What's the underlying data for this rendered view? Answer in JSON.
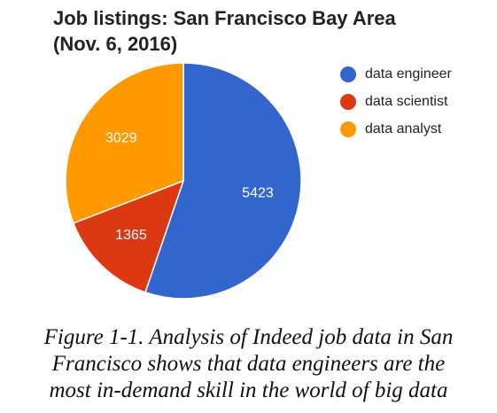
{
  "chart_data": {
    "type": "pie",
    "title": [
      "Job listings: San Francisco Bay Area",
      "(Nov. 6, 2016)"
    ],
    "categories": [
      "data engineer",
      "data scientist",
      "data analyst"
    ],
    "values": [
      5423,
      1365,
      3029
    ],
    "colors": [
      "#3366cc",
      "#dc3912",
      "#ff9900"
    ],
    "legend_position": "right",
    "start_angle_deg": 0,
    "direction": "clockwise"
  },
  "caption": {
    "lines": [
      "Figure 1-1. Analysis of Indeed job data in San",
      "Francisco shows that data engineers are the",
      "most in-demand skill in the world of big data"
    ]
  }
}
